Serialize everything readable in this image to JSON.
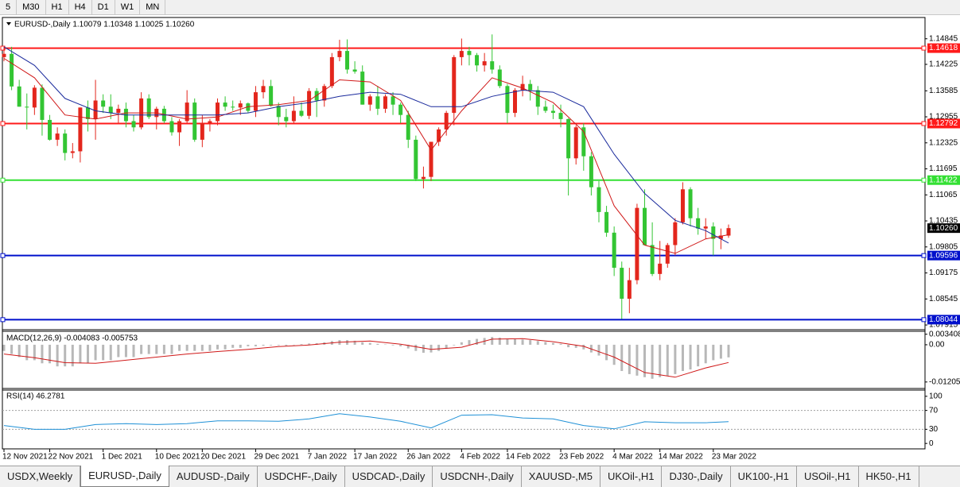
{
  "toolbar": {
    "timeframes": [
      "5",
      "M30",
      "H1",
      "H4",
      "D1",
      "W1",
      "MN"
    ]
  },
  "chart_data": [
    {
      "type": "candlestick",
      "title": "EURUSD-,Daily  1.10079 1.10348 1.10025 1.10260",
      "categories": [
        "12 Nov 2021",
        null,
        null,
        null,
        null,
        null,
        "22 Nov 2021",
        null,
        null,
        null,
        null,
        null,
        null,
        "1 Dec 2021",
        null,
        null,
        null,
        null,
        null,
        null,
        "10 Dec 2021",
        null,
        null,
        null,
        null,
        null,
        "20 Dec 2021",
        null,
        null,
        null,
        null,
        null,
        null,
        "29 Dec 2021",
        null,
        null,
        null,
        null,
        null,
        null,
        "7 Jan 2022",
        null,
        null,
        null,
        null,
        null,
        "17 Jan 2022",
        null,
        null,
        null,
        null,
        null,
        null,
        "26 Jan 2022",
        null,
        null,
        null,
        null,
        null,
        null,
        "4 Feb 2022",
        null,
        null,
        null,
        null,
        null,
        "14 Feb 2022",
        null,
        null,
        null,
        null,
        null,
        null,
        "23 Feb 2022",
        null,
        null,
        null,
        null,
        null,
        null,
        "4 Mar 2022",
        null,
        null,
        null,
        null,
        null,
        "14 Mar 2022",
        null,
        null,
        null,
        null,
        null,
        null,
        "23 Mar 2022",
        null,
        null
      ],
      "open": [
        1.144,
        1.1448,
        1.1369,
        1.132,
        1.1318,
        1.1366,
        1.1288,
        1.124,
        1.1255,
        1.1208,
        1.1212,
        1.1318,
        1.129,
        1.1335,
        1.132,
        1.1305,
        1.1315,
        1.1285,
        1.127,
        1.134,
        1.1295,
        1.1315,
        1.1285,
        1.1258,
        1.1285,
        1.133,
        1.124,
        1.128,
        1.1285,
        1.133,
        1.132,
        1.1318,
        1.1328,
        1.131,
        1.1355,
        1.137,
        1.1322,
        1.1295,
        1.1285,
        1.131,
        1.1298,
        1.1358,
        1.1335,
        1.137,
        1.144,
        1.1455,
        1.141,
        1.1405,
        1.1325,
        1.1345,
        1.1315,
        1.1345,
        1.1325,
        1.13,
        1.124,
        1.1145,
        1.115,
        1.1235,
        1.1265,
        1.1305,
        1.144,
        1.1455,
        1.1445,
        1.142,
        1.143,
        1.141,
        1.137,
        1.1305,
        1.136,
        1.1375,
        1.136,
        1.132,
        1.131,
        1.1305,
        1.129,
        1.1195,
        1.127,
        1.12,
        1.1125,
        1.1065,
        1.1015,
        1.093,
        1.0855,
        1.09,
        1.1075,
        1.0985,
        1.0915,
        1.094,
        1.0985,
        1.104,
        1.112,
        1.105,
        1.1025,
        1.103,
        1.1,
        1.10079
      ],
      "high": [
        1.1465,
        1.1465,
        1.1385,
        1.1352,
        1.1372,
        1.1374,
        1.13,
        1.127,
        1.1265,
        1.1232,
        1.1318,
        1.1335,
        1.1385,
        1.135,
        1.135,
        1.1325,
        1.133,
        1.13,
        1.1355,
        1.135,
        1.132,
        1.1322,
        1.1295,
        1.129,
        1.136,
        1.134,
        1.13,
        1.129,
        1.134,
        1.1345,
        1.1335,
        1.1335,
        1.133,
        1.137,
        1.1385,
        1.1385,
        1.133,
        1.1315,
        1.1345,
        1.133,
        1.1365,
        1.1365,
        1.1375,
        1.145,
        1.1482,
        1.1483,
        1.143,
        1.142,
        1.135,
        1.137,
        1.135,
        1.1355,
        1.133,
        1.131,
        1.125,
        1.1175,
        1.1235,
        1.127,
        1.131,
        1.1445,
        1.1485,
        1.1465,
        1.145,
        1.145,
        1.1495,
        1.142,
        1.1375,
        1.1365,
        1.1395,
        1.1385,
        1.137,
        1.1335,
        1.1325,
        1.1325,
        1.1292,
        1.1275,
        1.128,
        1.121,
        1.114,
        1.108,
        1.103,
        1.0945,
        1.093,
        1.1085,
        1.112,
        1.104,
        1.0995,
        1.099,
        1.105,
        1.1137,
        1.1125,
        1.1075,
        1.105,
        1.104,
        1.1025,
        1.10348
      ],
      "low": [
        1.143,
        1.136,
        1.132,
        1.1265,
        1.13,
        1.125,
        1.1238,
        1.1225,
        1.119,
        1.1195,
        1.1185,
        1.126,
        1.124,
        1.1305,
        1.129,
        1.128,
        1.127,
        1.126,
        1.1265,
        1.129,
        1.1265,
        1.128,
        1.125,
        1.1225,
        1.128,
        1.1235,
        1.1222,
        1.126,
        1.1275,
        1.131,
        1.131,
        1.13,
        1.1305,
        1.1295,
        1.134,
        1.132,
        1.1275,
        1.127,
        1.128,
        1.1295,
        1.129,
        1.1295,
        1.132,
        1.1365,
        1.143,
        1.14,
        1.14,
        1.1325,
        1.131,
        1.13,
        1.1305,
        1.13,
        1.128,
        1.122,
        1.114,
        1.1122,
        1.114,
        1.1225,
        1.125,
        1.1275,
        1.142,
        1.142,
        1.1405,
        1.1405,
        1.14,
        1.1365,
        1.128,
        1.1295,
        1.1345,
        1.1335,
        1.13,
        1.1305,
        1.129,
        1.127,
        1.1105,
        1.118,
        1.1165,
        1.1105,
        1.104,
        1.1005,
        1.091,
        1.0806,
        1.082,
        1.089,
        1.099,
        1.091,
        1.09,
        1.093,
        1.096,
        1.1035,
        1.103,
        1.101,
        1.1,
        1.096,
        1.0975,
        1.10025
      ],
      "close": [
        1.1448,
        1.1369,
        1.132,
        1.1318,
        1.1366,
        1.1288,
        1.124,
        1.1255,
        1.1208,
        1.1212,
        1.1318,
        1.129,
        1.1335,
        1.132,
        1.1305,
        1.1315,
        1.1285,
        1.127,
        1.134,
        1.1295,
        1.1315,
        1.1285,
        1.1258,
        1.1285,
        1.133,
        1.124,
        1.128,
        1.1285,
        1.133,
        1.132,
        1.1318,
        1.1328,
        1.131,
        1.1355,
        1.137,
        1.1322,
        1.1295,
        1.1285,
        1.131,
        1.1298,
        1.1358,
        1.1335,
        1.137,
        1.144,
        1.1455,
        1.141,
        1.1405,
        1.1325,
        1.1345,
        1.1315,
        1.1345,
        1.1325,
        1.13,
        1.124,
        1.1145,
        1.115,
        1.1235,
        1.1265,
        1.1305,
        1.144,
        1.1455,
        1.1445,
        1.142,
        1.143,
        1.141,
        1.137,
        1.1305,
        1.136,
        1.1375,
        1.136,
        1.132,
        1.131,
        1.1305,
        1.129,
        1.1195,
        1.127,
        1.12,
        1.1125,
        1.1065,
        1.1015,
        1.093,
        1.0855,
        1.09,
        1.1075,
        1.0985,
        1.0915,
        1.094,
        1.0985,
        1.104,
        1.112,
        1.105,
        1.1025,
        1.103,
        1.1,
        1.1008,
        1.1026
      ],
      "up_color": "#e3261c",
      "down_color": "#33c533",
      "ylim": [
        1.0782,
        1.1536
      ],
      "yticks": [
        1.14845,
        1.14225,
        1.13585,
        1.12955,
        1.12325,
        1.11695,
        1.11065,
        1.10435,
        1.09805,
        1.09175,
        1.08545,
        1.07915
      ],
      "levels": [
        {
          "value": 1.14618,
          "color": "#ff1a1a"
        },
        {
          "value": 1.12792,
          "color": "#ff1a1a"
        },
        {
          "value": 1.11422,
          "color": "#33e033"
        },
        {
          "value": 1.09596,
          "color": "#0010cc"
        },
        {
          "value": 1.08044,
          "color": "#0010cc"
        }
      ],
      "current_price": {
        "value": 1.1026,
        "label": "1.10260"
      },
      "lines": [
        {
          "color": "#d01818",
          "x": [
            0,
            4,
            8,
            12,
            16,
            20,
            24,
            28,
            32,
            36,
            40,
            44,
            48,
            52,
            56,
            60,
            64,
            68,
            72,
            76,
            80,
            84,
            88,
            92,
            95
          ],
          "values": [
            1.1437,
            1.139,
            1.13,
            1.129,
            1.1305,
            1.1305,
            1.129,
            1.1295,
            1.132,
            1.1325,
            1.1335,
            1.1385,
            1.138,
            1.1335,
            1.1215,
            1.131,
            1.139,
            1.1365,
            1.133,
            1.126,
            1.108,
            1.0985,
            1.0965,
            1.1,
            1.101
          ]
        },
        {
          "color": "#1a2a9c",
          "x": [
            0,
            4,
            8,
            12,
            16,
            20,
            24,
            28,
            32,
            36,
            40,
            44,
            48,
            52,
            56,
            60,
            64,
            68,
            72,
            76,
            80,
            84,
            88,
            92,
            95
          ],
          "values": [
            1.1465,
            1.142,
            1.134,
            1.131,
            1.13,
            1.13,
            1.13,
            1.13,
            1.1305,
            1.132,
            1.133,
            1.1345,
            1.1355,
            1.135,
            1.132,
            1.132,
            1.1345,
            1.136,
            1.1355,
            1.132,
            1.1205,
            1.111,
            1.1045,
            1.102,
            1.099
          ]
        }
      ]
    },
    {
      "type": "macd",
      "title": "MACD(12,26,9) -0.004083 -0.005753",
      "values": [
        -0.002,
        -0.003,
        -0.004,
        -0.005,
        -0.005,
        -0.006,
        -0.006,
        -0.007,
        -0.007,
        -0.007,
        -0.006,
        -0.006,
        -0.005,
        -0.005,
        -0.005,
        -0.004,
        -0.004,
        -0.004,
        -0.003,
        -0.003,
        -0.003,
        -0.003,
        -0.003,
        -0.002,
        -0.002,
        -0.002,
        -0.002,
        -0.002,
        -0.0015,
        -0.0015,
        -0.001,
        -0.001,
        -0.0005,
        -0.0005,
        -0.0003,
        -0.0002,
        -0.0002,
        -0.0003,
        -0.0001,
        0.0002,
        0.0004,
        0.0005,
        0.0008,
        0.0012,
        0.0015,
        0.0015,
        0.0013,
        0.0008,
        0.0006,
        0.0003,
        0.0001,
        -0.0002,
        -0.0005,
        -0.0012,
        -0.002,
        -0.0026,
        -0.0025,
        -0.002,
        -0.0012,
        -0.0002,
        0.0008,
        0.0015,
        0.0019,
        0.0022,
        0.0025,
        0.0023,
        0.0019,
        0.0018,
        0.0017,
        0.0015,
        0.0012,
        0.0009,
        0.0006,
        0.0003,
        -0.0008,
        -0.001,
        -0.0015,
        -0.0025,
        -0.0035,
        -0.005,
        -0.0065,
        -0.0085,
        -0.0095,
        -0.01,
        -0.0105,
        -0.011,
        -0.0105,
        -0.01,
        -0.0095,
        -0.0085,
        -0.008,
        -0.007,
        -0.006,
        -0.005,
        -0.0045,
        -0.004083
      ],
      "color": "#b8b8b8",
      "signal": {
        "color": "#d01818",
        "x": [
          0,
          4,
          8,
          12,
          16,
          20,
          24,
          28,
          32,
          36,
          40,
          44,
          48,
          52,
          56,
          60,
          64,
          68,
          72,
          76,
          80,
          84,
          88,
          92,
          95
        ],
        "values": [
          -0.003,
          -0.0042,
          -0.0058,
          -0.006,
          -0.005,
          -0.004,
          -0.003,
          -0.0022,
          -0.0015,
          -0.0006,
          -0.0001,
          0.0008,
          0.0012,
          0.0002,
          -0.0015,
          -0.0008,
          0.0018,
          0.002,
          0.001,
          -0.0005,
          -0.004,
          -0.009,
          -0.0105,
          -0.0075,
          -0.005753
        ]
      },
      "ylim": [
        -0.0139,
        0.0041
      ],
      "yticks": [
        0.003408,
        {
          "value": 0,
          "label": "0.00"
        },
        -0.012054
      ]
    },
    {
      "type": "line",
      "title": "RSI(14) 46.2781",
      "series": [
        {
          "color": "#1e90d6",
          "x": [
            0,
            4,
            8,
            12,
            16,
            20,
            24,
            28,
            32,
            36,
            40,
            44,
            48,
            52,
            56,
            60,
            64,
            68,
            72,
            76,
            80,
            84,
            88,
            92,
            95
          ],
          "values": [
            38,
            30,
            30,
            40,
            42,
            40,
            42,
            48,
            48,
            47,
            52,
            63,
            56,
            47,
            33,
            60,
            61,
            54,
            52,
            38,
            31,
            46,
            44,
            44,
            46.2781
          ]
        }
      ],
      "ylim": [
        -11.5,
        111.5
      ],
      "yticks": [
        100,
        70,
        30,
        0
      ],
      "levels": [
        70,
        30
      ]
    }
  ],
  "tabs": {
    "items": [
      "USDX,Weekly",
      "EURUSD-,Daily",
      "AUDUSD-,Daily",
      "USDCHF-,Daily",
      "USDCAD-,Daily",
      "USDCNH-,Daily",
      "XAUUSD-,M5",
      "UKOil-,H1",
      "DJ30-,Daily",
      "UK100-,H1",
      "USOil-,H1",
      "HK50-,H1"
    ],
    "active": 1
  }
}
